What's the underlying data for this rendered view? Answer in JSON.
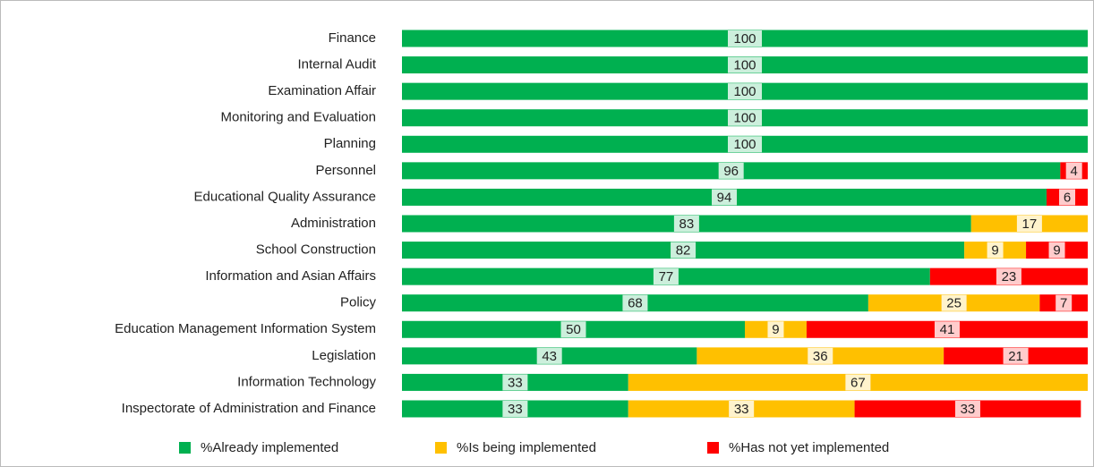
{
  "chart_data": {
    "type": "stacked-barh",
    "categories": [
      "Finance",
      "Internal Audit",
      "Examination Affair",
      "Monitoring and Evaluation",
      "Planning",
      "Personnel",
      "Educational Quality Assurance",
      "Administration",
      "School Construction",
      "Information and Asian Affairs",
      "Policy",
      "Education Management Information System",
      "Legislation",
      "Information Technology",
      "Inspectorate of Administration and Finance"
    ],
    "series": [
      {
        "name": "%Already implemented",
        "color": "#00b050",
        "values": [
          100,
          100,
          100,
          100,
          100,
          96,
          94,
          83,
          82,
          77,
          68,
          50,
          43,
          33,
          33
        ]
      },
      {
        "name": "%Is being implemented",
        "color": "#ffc000",
        "values": [
          0,
          0,
          0,
          0,
          0,
          0,
          0,
          17,
          9,
          0,
          25,
          9,
          36,
          67,
          33
        ]
      },
      {
        "name": "%Has not yet implemented",
        "color": "#ff0000",
        "values": [
          0,
          0,
          0,
          0,
          0,
          4,
          6,
          0,
          9,
          23,
          7,
          41,
          21,
          0,
          33
        ]
      }
    ],
    "xlim": [
      0,
      100
    ],
    "legend": "bottom"
  }
}
